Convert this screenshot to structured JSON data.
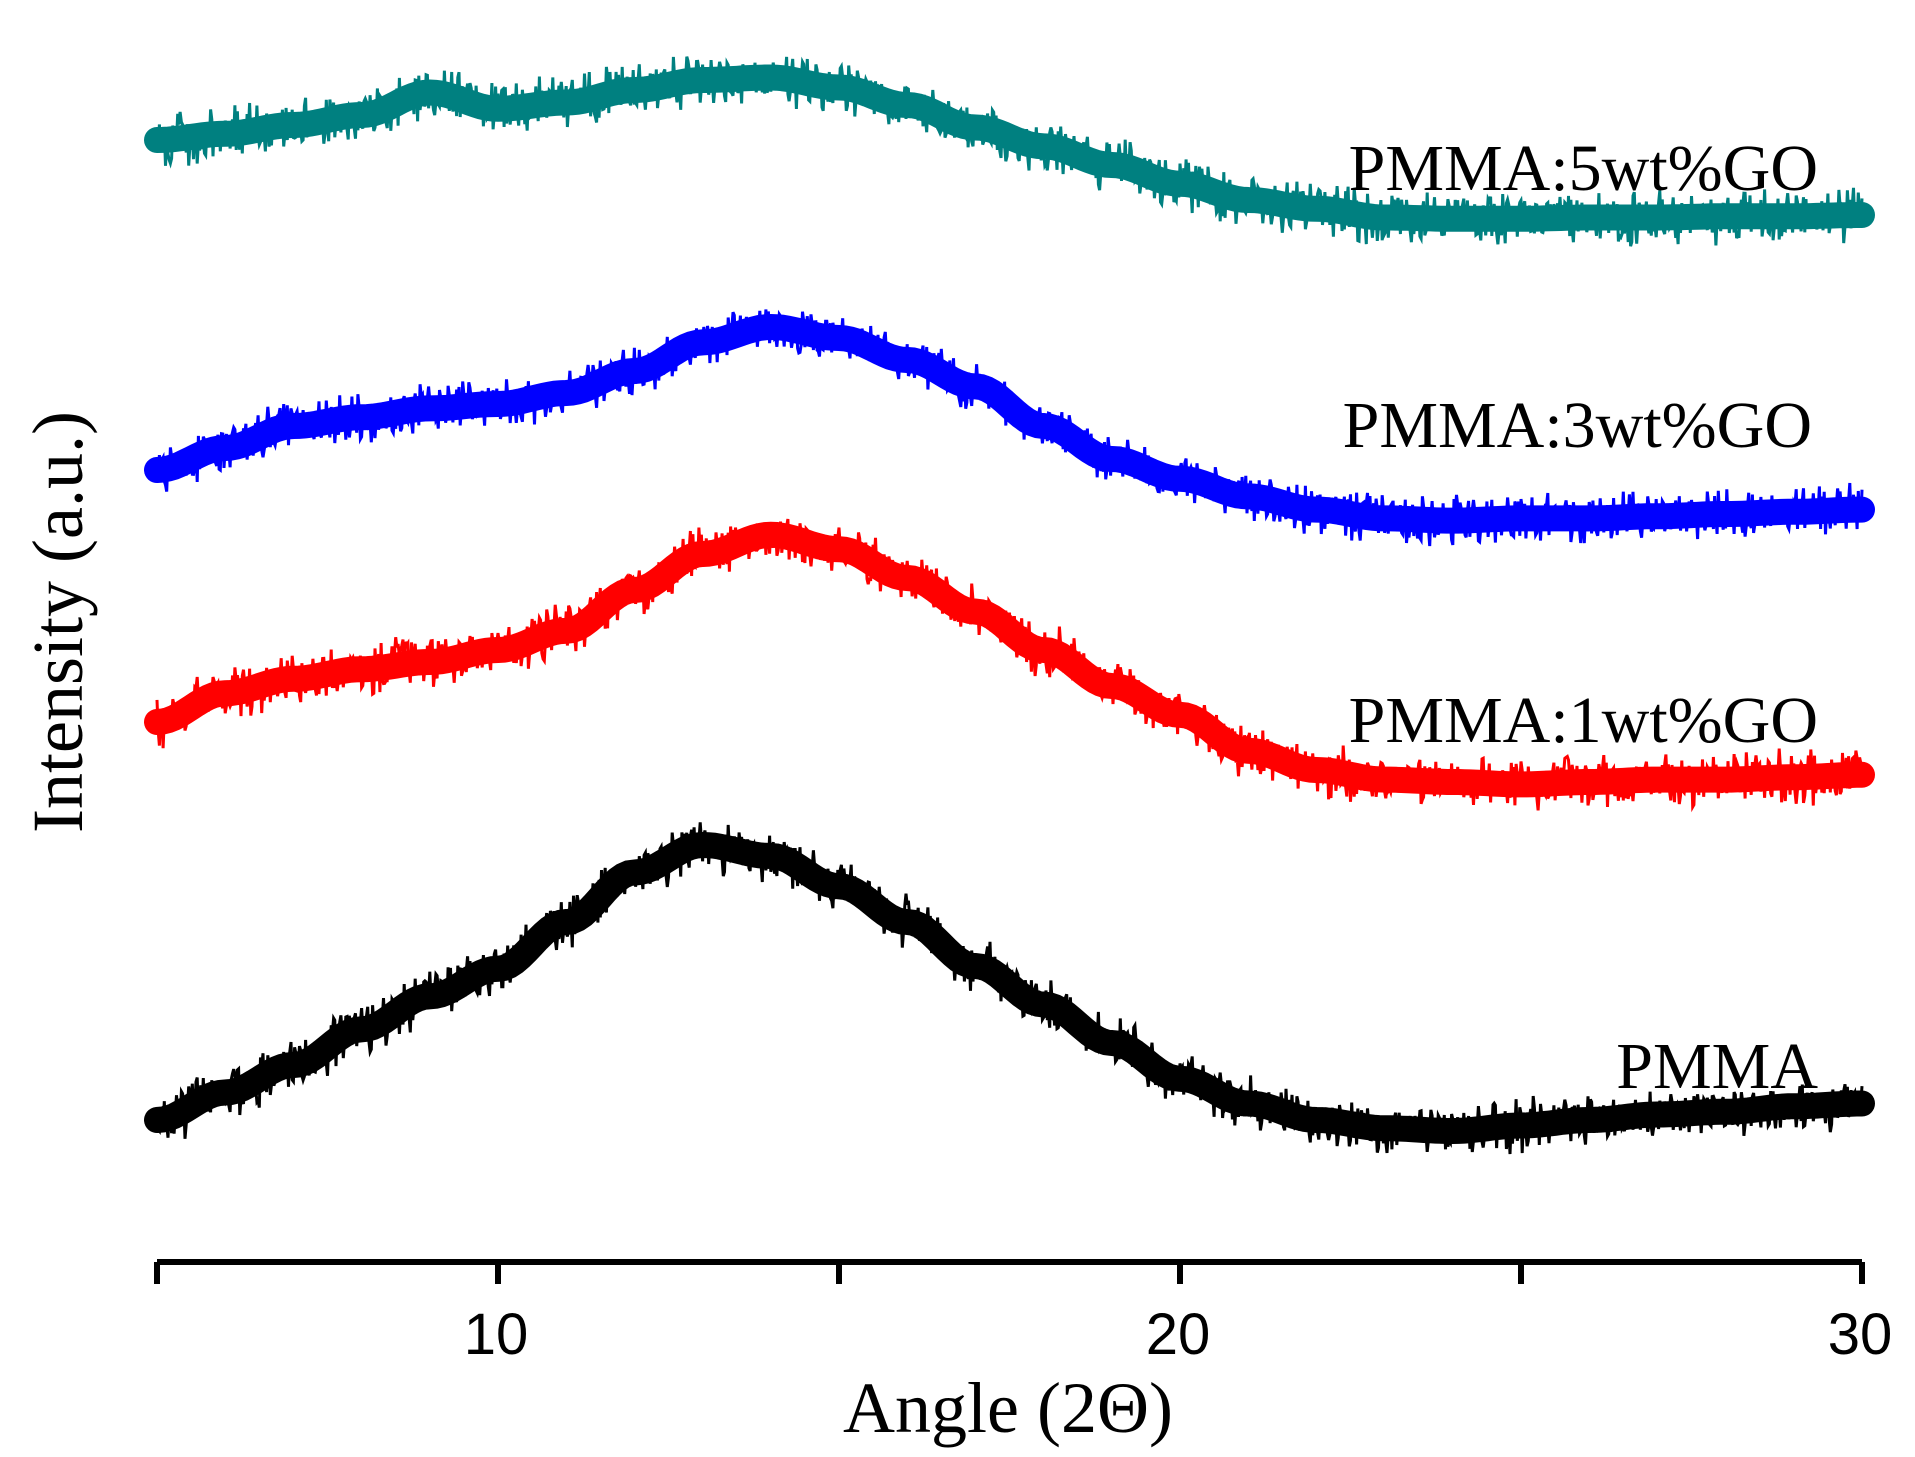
{
  "chart_data": {
    "type": "line",
    "title": "",
    "xlabel": "Angle (2Θ)",
    "ylabel": "Intensity (a.u.)",
    "xlim": [
      5,
      30
    ],
    "x_ticks_major": [
      10,
      20,
      30
    ],
    "x_ticks_minor": [
      5,
      15,
      25
    ],
    "y_ticks": [],
    "grid": false,
    "legend": "inline labels at right",
    "x": [
      5,
      6,
      7,
      8,
      9,
      10,
      11,
      12,
      13,
      14,
      15,
      16,
      17,
      18,
      19,
      20,
      21,
      22,
      23,
      24,
      25,
      26,
      27,
      28,
      29,
      30
    ],
    "series": [
      {
        "name": "PMMA",
        "color": "#000000",
        "values": [
          0.0,
          0.1,
          0.2,
          0.33,
          0.45,
          0.55,
          0.72,
          0.9,
          1.0,
          0.96,
          0.85,
          0.72,
          0.56,
          0.42,
          0.28,
          0.15,
          0.06,
          0.0,
          -0.03,
          -0.04,
          -0.02,
          0.0,
          0.02,
          0.03,
          0.05,
          0.06
        ]
      },
      {
        "name": "PMMA:1wt%GO",
        "color": "#ff0000",
        "values": [
          0.0,
          0.12,
          0.18,
          0.22,
          0.25,
          0.3,
          0.38,
          0.55,
          0.7,
          0.78,
          0.72,
          0.6,
          0.46,
          0.3,
          0.15,
          0.03,
          -0.12,
          -0.2,
          -0.24,
          -0.25,
          -0.26,
          -0.25,
          -0.24,
          -0.24,
          -0.23,
          -0.22
        ]
      },
      {
        "name": "PMMA:3wt%GO",
        "color": "#0000ff",
        "values": [
          0.0,
          0.1,
          0.2,
          0.24,
          0.28,
          0.3,
          0.35,
          0.45,
          0.58,
          0.65,
          0.6,
          0.5,
          0.38,
          0.2,
          0.05,
          -0.04,
          -0.12,
          -0.18,
          -0.22,
          -0.23,
          -0.22,
          -0.22,
          -0.21,
          -0.2,
          -0.19,
          -0.18
        ]
      },
      {
        "name": "PMMA:5wt%GO",
        "color": "#008080",
        "values": [
          0.0,
          0.05,
          0.12,
          0.2,
          0.38,
          0.25,
          0.3,
          0.4,
          0.48,
          0.5,
          0.42,
          0.28,
          0.1,
          -0.05,
          -0.2,
          -0.35,
          -0.48,
          -0.55,
          -0.62,
          -0.63,
          -0.63,
          -0.62,
          -0.62,
          -0.61,
          -0.61,
          -0.6
        ]
      }
    ]
  },
  "labels": {
    "tick_10": "10",
    "tick_20": "20",
    "tick_30": "30",
    "x_axis_title": "Angle (2Θ)",
    "y_axis_title": "Intensity (a.u.)",
    "series_pmma": "PMMA",
    "series_1wt": "PMMA:1wt%GO",
    "series_3wt": "PMMA:3wt%GO",
    "series_5wt": "PMMA:5wt%GO"
  }
}
